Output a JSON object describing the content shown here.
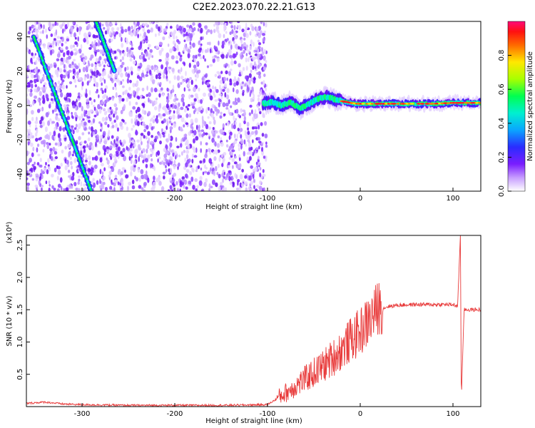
{
  "chart_data": [
    {
      "type": "heatmap",
      "title": "C2E2.2023.070.22.21.G13",
      "xlabel": "Height of straight line (km)",
      "ylabel": "Frequency (Hz)",
      "xlim": [
        -360,
        130
      ],
      "ylim": [
        -50,
        49
      ],
      "xticks": [
        -300,
        -200,
        -100,
        0,
        100
      ],
      "yticks": [
        -40,
        -20,
        0,
        20,
        40
      ],
      "grid": false,
      "colorbar": {
        "label": "Normalized spectral amplitude",
        "range": [
          0,
          1
        ],
        "ticks": [
          "0.0",
          "0.2",
          "0.4",
          "0.6",
          "0.8"
        ]
      },
      "features": {
        "noise_region_x": [
          -360,
          -105
        ],
        "signal_center_hz": [
          [
            -105,
            1
          ],
          [
            -95,
            2
          ],
          [
            -85,
            0
          ],
          [
            -75,
            2
          ],
          [
            -65,
            -2
          ],
          [
            -55,
            1
          ],
          [
            -45,
            4
          ],
          [
            -35,
            5
          ],
          [
            -25,
            3
          ],
          [
            -15,
            2
          ],
          [
            -5,
            1
          ],
          [
            10,
            1
          ],
          [
            40,
            1
          ],
          [
            80,
            1
          ],
          [
            100,
            1.5
          ],
          [
            130,
            1.5
          ]
        ],
        "diagonal_tracks": [
          {
            "from": [
              -352,
              40
            ],
            "to": [
              -290,
              -50
            ]
          },
          {
            "from": [
              -285,
              49
            ],
            "to": [
              -265,
              20
            ]
          }
        ]
      }
    },
    {
      "type": "line",
      "xlabel": "Height of straight line (km)",
      "ylabel": "SNR (10 * v/v)",
      "y_multiplier": "(x10⁴)",
      "xlim": [
        -360,
        130
      ],
      "ylim": [
        0,
        2.65
      ],
      "xticks": [
        -300,
        -200,
        -100,
        0,
        100
      ],
      "yticks": [
        0.5,
        1.0,
        1.5,
        2.0,
        2.5
      ],
      "series": [
        {
          "color": "#e83a3a",
          "points": [
            [
              -360,
              0.05
            ],
            [
              -340,
              0.07
            ],
            [
              -320,
              0.04
            ],
            [
              -300,
              0.03
            ],
            [
              -250,
              0.02
            ],
            [
              -200,
              0.02
            ],
            [
              -150,
              0.02
            ],
            [
              -100,
              0.03
            ],
            [
              -90,
              0.12
            ],
            [
              -80,
              0.2
            ],
            [
              -70,
              0.3
            ],
            [
              -60,
              0.4
            ],
            [
              -50,
              0.5
            ],
            [
              -40,
              0.6
            ],
            [
              -30,
              0.72
            ],
            [
              -20,
              0.85
            ],
            [
              -10,
              1.0
            ],
            [
              0,
              1.12
            ],
            [
              10,
              1.3
            ],
            [
              20,
              1.5
            ],
            [
              30,
              1.55
            ],
            [
              40,
              1.57
            ],
            [
              60,
              1.58
            ],
            [
              80,
              1.58
            ],
            [
              100,
              1.58
            ],
            [
              105,
              1.55
            ],
            [
              108,
              2.65
            ],
            [
              109,
              0.1
            ],
            [
              112,
              1.5
            ],
            [
              130,
              1.5
            ]
          ]
        }
      ]
    }
  ]
}
